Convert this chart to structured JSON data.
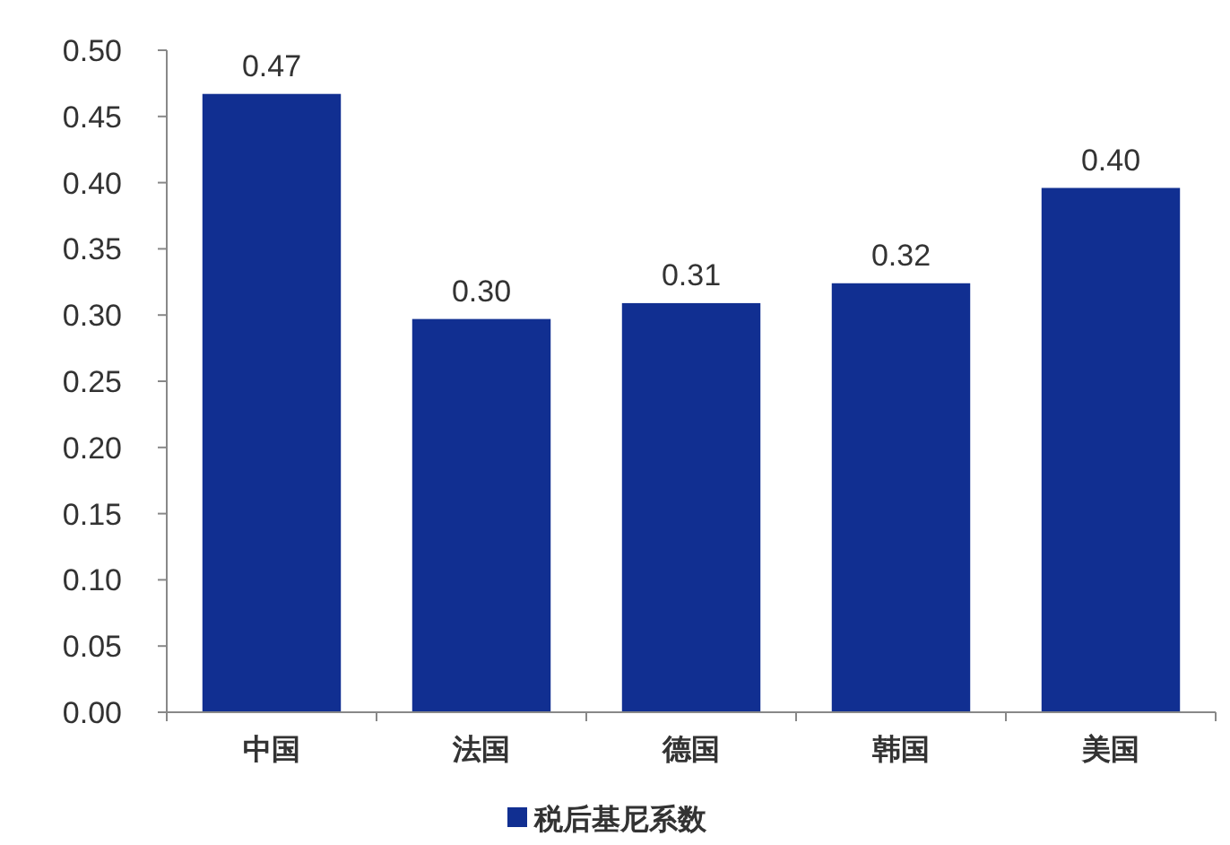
{
  "chart_data": {
    "type": "bar",
    "categories": [
      "中国",
      "法国",
      "德国",
      "韩国",
      "美国"
    ],
    "series": [
      {
        "name": "税后基尼系数",
        "color": "#112f91",
        "values": [
          0.467,
          0.297,
          0.309,
          0.324,
          0.396
        ],
        "value_labels": [
          "0.47",
          "0.30",
          "0.31",
          "0.32",
          "0.40"
        ]
      }
    ],
    "ylim": [
      0,
      0.5
    ],
    "yticks": [
      {
        "value": 0,
        "label": "0.00"
      },
      {
        "value": 0.05,
        "label": "0.05"
      },
      {
        "value": 0.1,
        "label": "0.10"
      },
      {
        "value": 0.15,
        "label": "0.15"
      },
      {
        "value": 0.2,
        "label": "0.20"
      },
      {
        "value": 0.25,
        "label": "0.25"
      },
      {
        "value": 0.3,
        "label": "0.30"
      },
      {
        "value": 0.35,
        "label": "0.35"
      },
      {
        "value": 0.4,
        "label": "0.40"
      },
      {
        "value": 0.45,
        "label": "0.45"
      },
      {
        "value": 0.5,
        "label": "0.50"
      }
    ],
    "grid": false,
    "legend": "bottom"
  }
}
